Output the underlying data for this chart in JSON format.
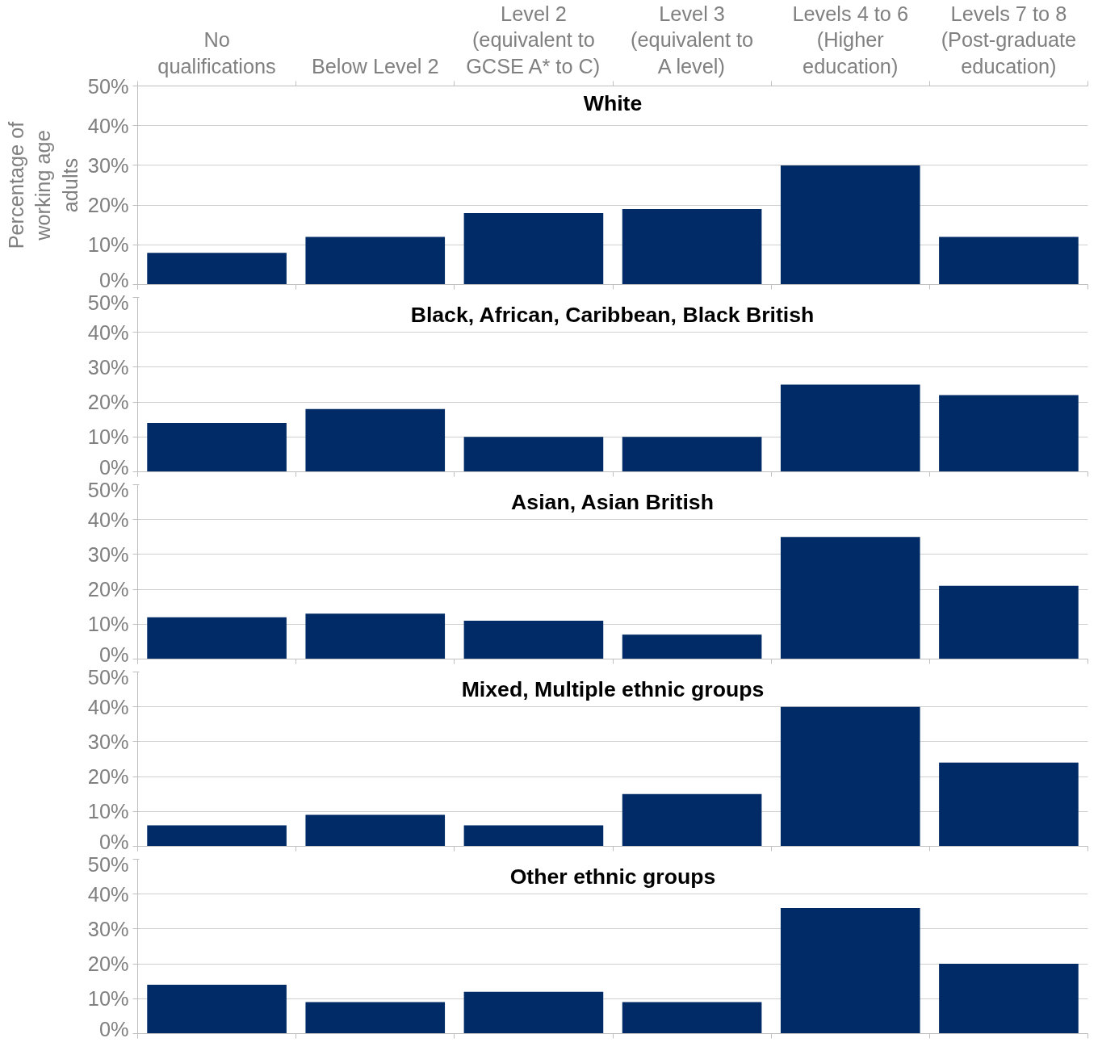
{
  "chart_data": [
    {
      "type": "bar",
      "title": "White",
      "ylabel": "Percentage of working age adults",
      "categories": [
        "No qualifications",
        "Below Level 2",
        "Level 2 (equivalent to GCSE A* to C)",
        "Level 3 (equivalent to A level)",
        "Levels 4 to 6 (Higher education)",
        "Levels 7 to 8 (Post-graduate education)"
      ],
      "values": [
        8,
        12,
        18,
        19,
        30,
        12
      ],
      "color": "#002b66",
      "ylim": [
        0,
        50
      ],
      "yticks": [
        {
          "value": 0,
          "label": "0%"
        },
        {
          "value": 10,
          "label": "10%"
        },
        {
          "value": 20,
          "label": "20%"
        },
        {
          "value": 30,
          "label": "30%"
        },
        {
          "value": 40,
          "label": "40%"
        },
        {
          "value": 50,
          "label": "50%"
        }
      ],
      "grid": "y",
      "legend": false
    },
    {
      "type": "bar",
      "title": "Black, African, Caribbean, Black British",
      "categories": [
        null,
        null,
        null,
        null,
        null,
        null
      ],
      "values": [
        14,
        18,
        10,
        10,
        25,
        22
      ],
      "color": "#002b66",
      "ylim": [
        0,
        50
      ],
      "yticks": [
        {
          "value": 0,
          "label": "0%"
        },
        {
          "value": 10,
          "label": "10%"
        },
        {
          "value": 20,
          "label": "20%"
        },
        {
          "value": 30,
          "label": "30%"
        },
        {
          "value": 40,
          "label": "40%"
        },
        {
          "value": 50,
          "label": "50%"
        }
      ],
      "grid": "y",
      "legend": false,
      "tick_labels": "y"
    },
    {
      "type": "bar",
      "title": "Asian, Asian British",
      "categories": [
        null,
        null,
        null,
        null,
        null,
        null
      ],
      "values": [
        12,
        13,
        11,
        7,
        35,
        21
      ],
      "color": "#002b66",
      "ylim": [
        0,
        50
      ],
      "yticks": [
        {
          "value": 0,
          "label": "0%"
        },
        {
          "value": 10,
          "label": "10%"
        },
        {
          "value": 20,
          "label": "20%"
        },
        {
          "value": 30,
          "label": "30%"
        },
        {
          "value": 40,
          "label": "40%"
        },
        {
          "value": 50,
          "label": "50%"
        }
      ],
      "grid": "y",
      "legend": false,
      "tick_labels": "y"
    },
    {
      "type": "bar",
      "title": "Mixed, Multiple ethnic groups",
      "categories": [
        null,
        null,
        null,
        null,
        null,
        null
      ],
      "values": [
        6,
        9,
        6,
        15,
        40,
        24
      ],
      "color": "#002b66",
      "ylim": [
        0,
        50
      ],
      "yticks": [
        {
          "value": 0,
          "label": "0%"
        },
        {
          "value": 10,
          "label": "10%"
        },
        {
          "value": 20,
          "label": "20%"
        },
        {
          "value": 30,
          "label": "30%"
        },
        {
          "value": 40,
          "label": "40%"
        },
        {
          "value": 50,
          "label": "50%"
        }
      ],
      "grid": "y",
      "legend": false,
      "tick_labels": "y"
    },
    {
      "type": "bar",
      "title": "Other ethnic groups",
      "categories": [
        null,
        null,
        null,
        null,
        null,
        null
      ],
      "values": [
        14,
        9,
        12,
        9,
        36,
        20
      ],
      "color": "#002b66",
      "ylim": [
        0,
        50
      ],
      "yticks": [
        {
          "value": 0,
          "label": "0%"
        },
        {
          "value": 10,
          "label": "10%"
        },
        {
          "value": 20,
          "label": "20%"
        },
        {
          "value": 30,
          "label": "30%"
        },
        {
          "value": 40,
          "label": "40%"
        },
        {
          "value": 50,
          "label": "50%"
        }
      ],
      "grid": "y",
      "legend": false,
      "tick_labels": "y"
    }
  ]
}
